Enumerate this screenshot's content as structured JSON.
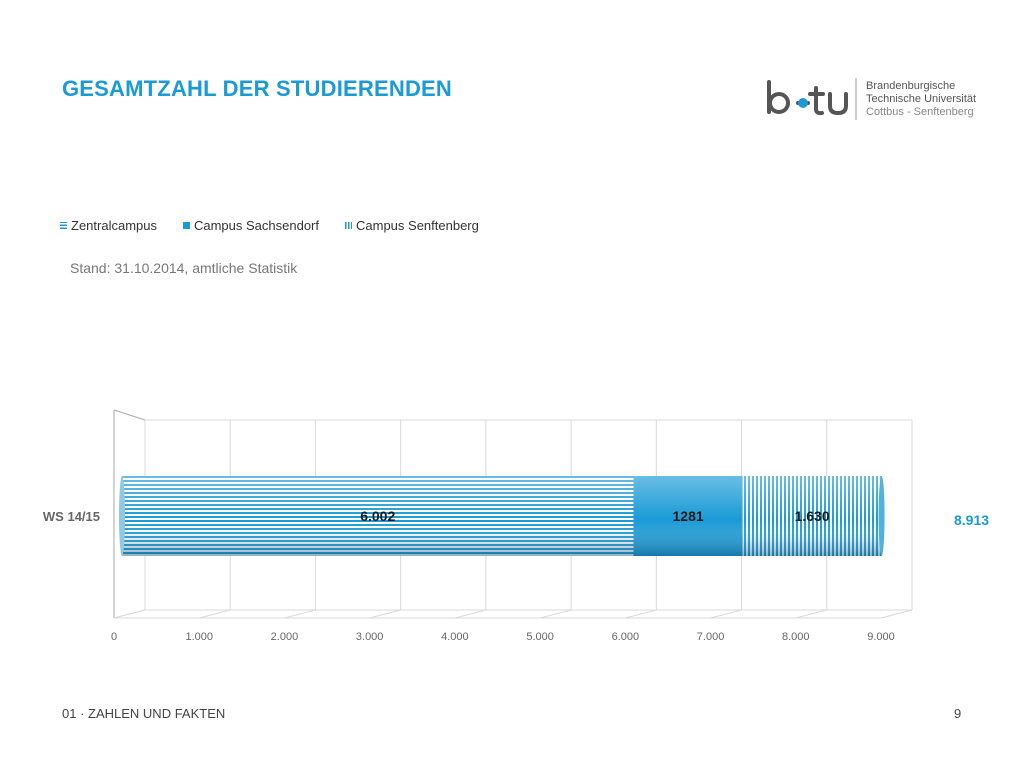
{
  "slide": {
    "title": "GESAMTZAHL DER STUDIERENDEN",
    "note": "Stand: 31.10.2014, amtliche Statistik",
    "footer_section": "01 · ZAHLEN UND FAKTEN",
    "page_number": "9"
  },
  "logo": {
    "line1": "Brandenburgische",
    "line2": "Technische Universität",
    "line3": "Cottbus - Senftenberg"
  },
  "colors": {
    "accent": "#1a9ad6",
    "grid": "#d9d9d9"
  },
  "chart_data": {
    "type": "bar",
    "orientation": "horizontal",
    "stacked": true,
    "categories": [
      "WS 14/15"
    ],
    "series": [
      {
        "name": "Zentralcampus",
        "values": [
          6002
        ],
        "label": "6.002"
      },
      {
        "name": "Campus Sachsendorf",
        "values": [
          1281
        ],
        "label": "1281"
      },
      {
        "name": "Campus Senftenberg",
        "values": [
          1630
        ],
        "label": "1.630"
      }
    ],
    "total_label": "8.913",
    "xlim": [
      0,
      9000
    ],
    "x_ticks": [
      0,
      1000,
      2000,
      3000,
      4000,
      5000,
      6000,
      7000,
      8000,
      9000
    ],
    "x_tick_labels": [
      "0",
      "1.000",
      "2.000",
      "3.000",
      "4.000",
      "5.000",
      "6.000",
      "7.000",
      "8.000",
      "9.000"
    ],
    "grid": true,
    "legend": "top-left"
  }
}
